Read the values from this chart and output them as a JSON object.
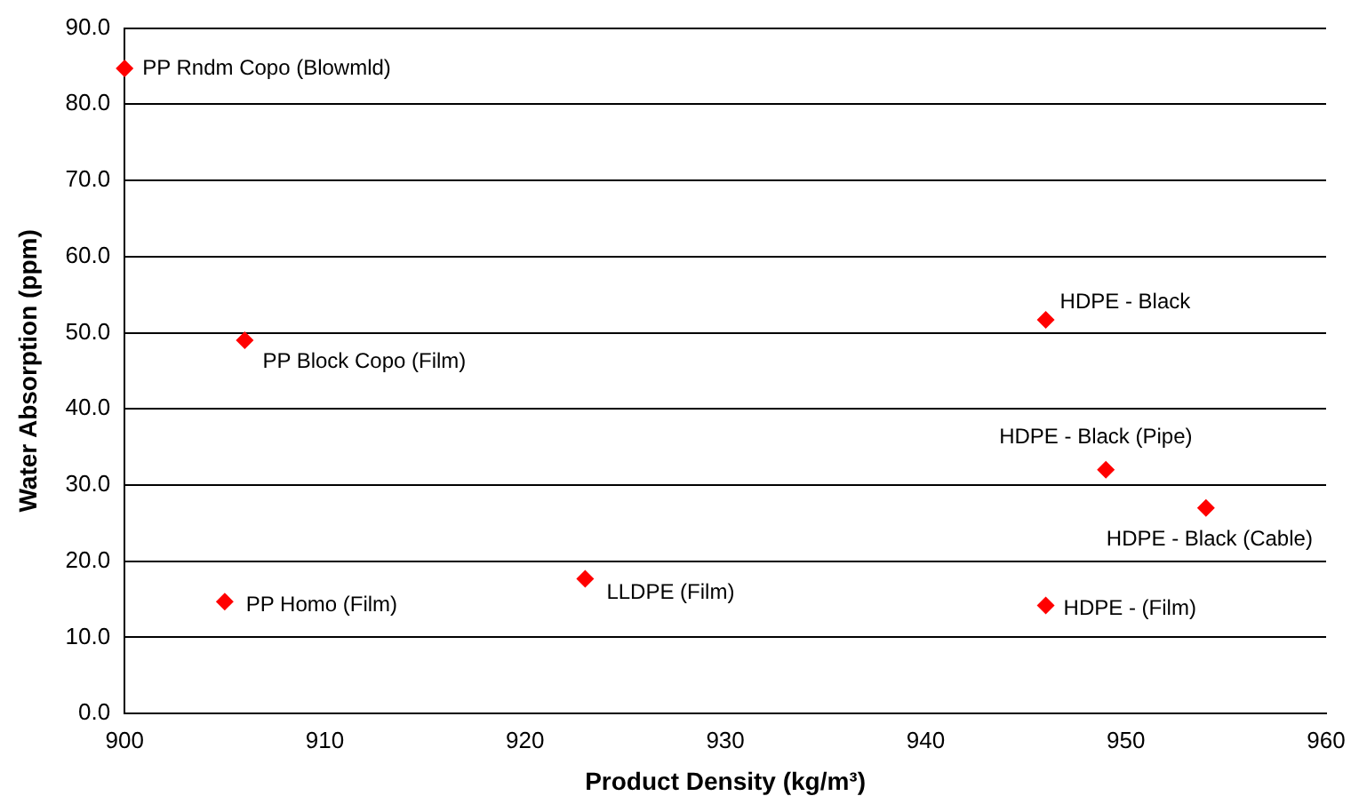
{
  "chart_data": {
    "type": "scatter",
    "xlabel": "Product Density (kg/m³)",
    "ylabel": "Water Absorption (ppm)",
    "x": [
      900,
      906,
      946,
      949,
      954,
      946,
      923,
      905
    ],
    "series": [
      {
        "color": "#ff0000",
        "values": [
          84.7,
          49,
          51.7,
          32,
          27,
          14.2,
          17.7,
          14.7
        ]
      }
    ],
    "xlim": [
      900,
      960
    ],
    "xticks": [
      900,
      910,
      920,
      930,
      940,
      950,
      960
    ],
    "ylim": [
      0,
      90
    ],
    "yticks": [
      {
        "value": 0,
        "label": "0.0"
      },
      {
        "value": 10,
        "label": "10.0"
      },
      {
        "value": 20,
        "label": "20.0"
      },
      {
        "value": 30,
        "label": "30.0"
      },
      {
        "value": 40,
        "label": "40.0"
      },
      {
        "value": 50,
        "label": "50.0"
      },
      {
        "value": 60,
        "label": "60.0"
      },
      {
        "value": 70,
        "label": "70.0"
      },
      {
        "value": 80,
        "label": "80.0"
      },
      {
        "value": 90,
        "label": "90.0"
      }
    ],
    "grid": "y",
    "legend": false,
    "marker": "diamond",
    "annotations": [
      {
        "text": "PP Rndm Copo (Blowmld)",
        "x": 900,
        "y": 84.7
      },
      {
        "text": "PP Block Copo (Film)",
        "x": 906,
        "y": 49
      },
      {
        "text": "HDPE - Black",
        "x": 946,
        "y": 51.7
      },
      {
        "text": "HDPE - Black (Pipe)",
        "x": 949,
        "y": 32
      },
      {
        "text": "HDPE - Black (Cable)",
        "x": 954,
        "y": 27
      },
      {
        "text": "HDPE - (Film)",
        "x": 946,
        "y": 14.2
      },
      {
        "text": "LLDPE (Film)",
        "x": 923,
        "y": 17.7
      },
      {
        "text": "PP Homo (Film)",
        "x": 905,
        "y": 14.7
      }
    ]
  }
}
